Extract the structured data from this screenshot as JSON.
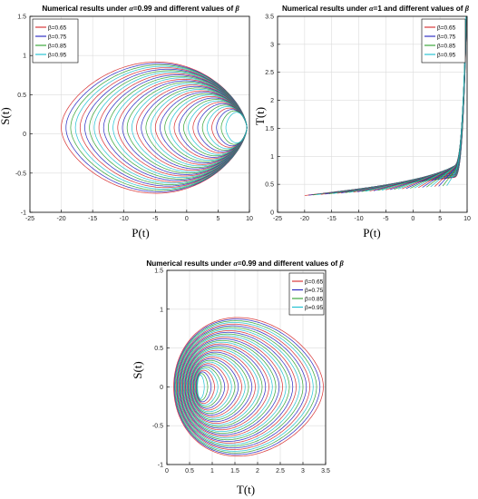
{
  "figure": {
    "colors": [
      "#d62728",
      "#1f1fbf",
      "#2ca02c",
      "#17becf"
    ]
  },
  "chart_data": [
    {
      "type": "line",
      "title_parts": [
        "Numerical results under ",
        "α",
        "=0.99 and different values of ",
        "β"
      ],
      "xlabel": "P(t)",
      "ylabel": "S(t)",
      "xlim": [
        -25,
        10
      ],
      "ylim": [
        -1,
        1.5
      ],
      "xticks": [
        -25,
        -20,
        -15,
        -10,
        -5,
        0,
        5,
        10
      ],
      "yticks": [
        -1,
        -0.5,
        0,
        0.5,
        1,
        1.5
      ],
      "grid": true,
      "legend_position": "top-left",
      "series": [
        {
          "name": "β=0.65",
          "color": "#d62728"
        },
        {
          "name": "β=0.75",
          "color": "#1f1fbf"
        },
        {
          "name": "β=0.85",
          "color": "#2ca02c"
        },
        {
          "name": "β=0.95",
          "color": "#17becf"
        }
      ]
    },
    {
      "type": "line",
      "title_parts": [
        "Numerical results under ",
        "α",
        "=1 and different values of ",
        "β"
      ],
      "xlabel": "P(t)",
      "ylabel": "T(t)",
      "xlim": [
        -25,
        10
      ],
      "ylim": [
        0,
        3.5
      ],
      "xticks": [
        -25,
        -20,
        -15,
        -10,
        -5,
        0,
        5,
        10
      ],
      "yticks": [
        0,
        0.5,
        1,
        1.5,
        2,
        2.5,
        3,
        3.5
      ],
      "grid": true,
      "legend_position": "top-right",
      "series": [
        {
          "name": "β=0.65",
          "color": "#d62728"
        },
        {
          "name": "β=0.75",
          "color": "#1f1fbf"
        },
        {
          "name": "β=0.85",
          "color": "#2ca02c"
        },
        {
          "name": "β=0.95",
          "color": "#17becf"
        }
      ]
    },
    {
      "type": "line",
      "title_parts": [
        "Numerical results under ",
        "α",
        "=0.99 and different values of ",
        "β"
      ],
      "xlabel": "T(t)",
      "ylabel": "S(t)",
      "xlim": [
        0,
        3.5
      ],
      "ylim": [
        -1,
        1.5
      ],
      "xticks": [
        0,
        0.5,
        1,
        1.5,
        2,
        2.5,
        3,
        3.5
      ],
      "yticks": [
        -1,
        -0.5,
        0,
        0.5,
        1,
        1.5
      ],
      "grid": true,
      "legend_position": "top-right",
      "series": [
        {
          "name": "β=0.65",
          "color": "#d62728"
        },
        {
          "name": "β=0.75",
          "color": "#1f1fbf"
        },
        {
          "name": "β=0.85",
          "color": "#2ca02c"
        },
        {
          "name": "β=0.95",
          "color": "#17becf"
        }
      ]
    }
  ]
}
